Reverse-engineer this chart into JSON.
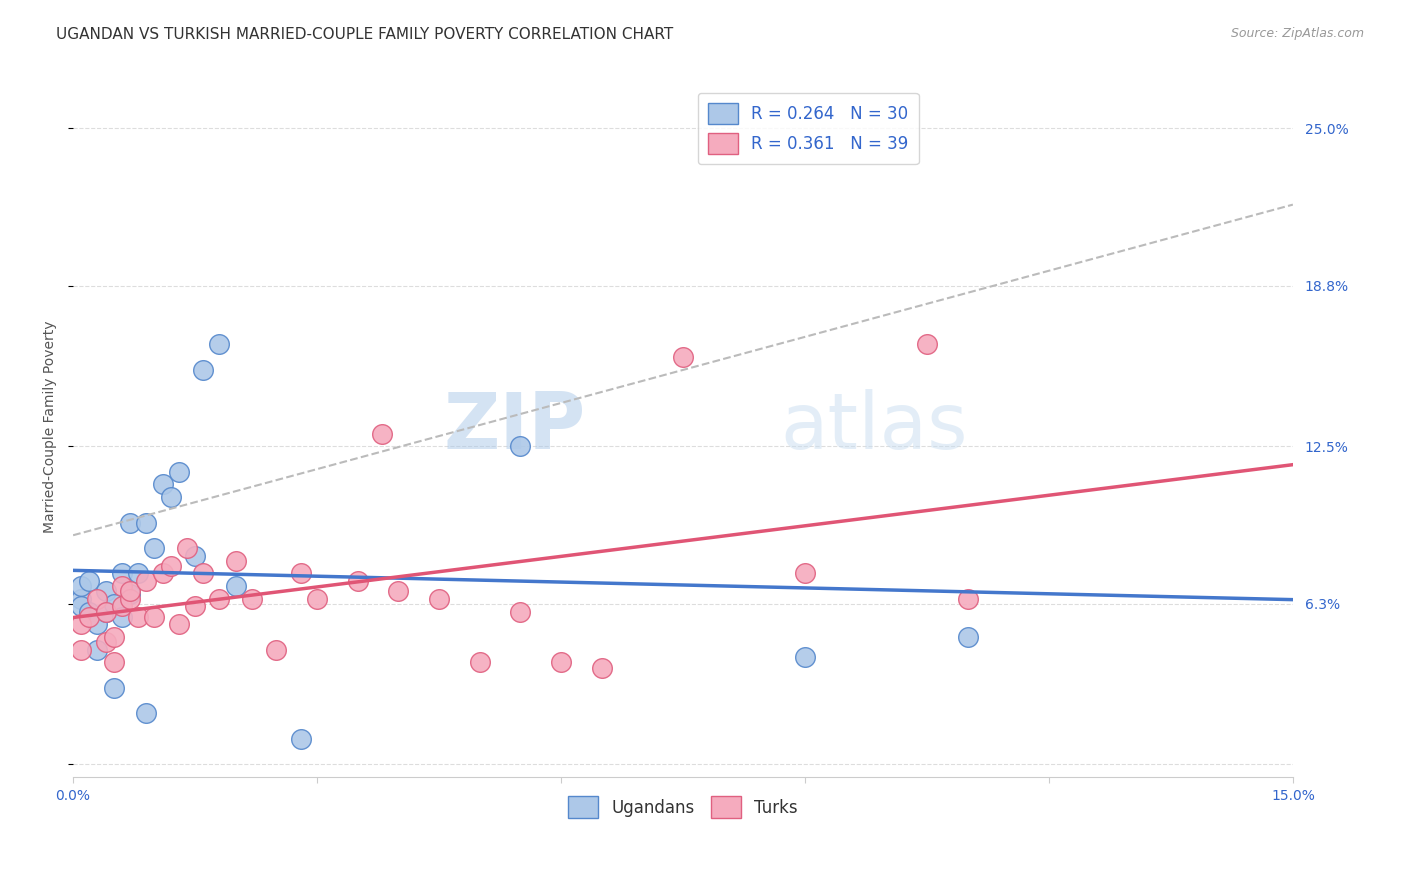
{
  "title": "UGANDAN VS TURKISH MARRIED-COUPLE FAMILY POVERTY CORRELATION CHART",
  "source": "Source: ZipAtlas.com",
  "ylabel": "Married-Couple Family Poverty",
  "watermark_part1": "ZIP",
  "watermark_part2": "atlas",
  "xlim": [
    0.0,
    0.15
  ],
  "ylim": [
    -0.005,
    0.27
  ],
  "xticks": [
    0.0,
    0.03,
    0.06,
    0.09,
    0.12,
    0.15
  ],
  "xticklabels": [
    "0.0%",
    "",
    "",
    "",
    "",
    "15.0%"
  ],
  "ytick_positions": [
    0.0,
    0.063,
    0.125,
    0.188,
    0.25
  ],
  "ytick_labels": [
    "",
    "6.3%",
    "12.5%",
    "18.8%",
    "25.0%"
  ],
  "ugandan_color": "#adc8e8",
  "turkish_color": "#f5abbe",
  "ugandan_edge": "#5588cc",
  "turkish_edge": "#e06080",
  "ugandan_line_color": "#4477cc",
  "turkish_line_color": "#e05575",
  "conf_line_color": "#bbbbbb",
  "legend_r_ugandan": "R = 0.264",
  "legend_n_ugandan": "N = 30",
  "legend_r_turkish": "R = 0.361",
  "legend_n_turkish": "N = 39",
  "ugandan_x": [
    0.001,
    0.001,
    0.001,
    0.002,
    0.002,
    0.003,
    0.003,
    0.004,
    0.004,
    0.005,
    0.005,
    0.006,
    0.006,
    0.007,
    0.007,
    0.008,
    0.009,
    0.009,
    0.01,
    0.011,
    0.012,
    0.013,
    0.015,
    0.016,
    0.018,
    0.02,
    0.028,
    0.055,
    0.09,
    0.11
  ],
  "ugandan_y": [
    0.065,
    0.07,
    0.062,
    0.06,
    0.072,
    0.055,
    0.045,
    0.06,
    0.068,
    0.063,
    0.03,
    0.058,
    0.075,
    0.067,
    0.095,
    0.075,
    0.095,
    0.02,
    0.085,
    0.11,
    0.105,
    0.115,
    0.082,
    0.155,
    0.165,
    0.07,
    0.01,
    0.125,
    0.042,
    0.05
  ],
  "turkish_x": [
    0.001,
    0.001,
    0.002,
    0.003,
    0.004,
    0.004,
    0.005,
    0.005,
    0.006,
    0.006,
    0.007,
    0.007,
    0.008,
    0.009,
    0.01,
    0.011,
    0.012,
    0.013,
    0.014,
    0.015,
    0.016,
    0.018,
    0.02,
    0.022,
    0.025,
    0.028,
    0.03,
    0.035,
    0.038,
    0.04,
    0.045,
    0.05,
    0.055,
    0.06,
    0.065,
    0.075,
    0.09,
    0.105,
    0.11
  ],
  "turkish_y": [
    0.055,
    0.045,
    0.058,
    0.065,
    0.048,
    0.06,
    0.05,
    0.04,
    0.062,
    0.07,
    0.065,
    0.068,
    0.058,
    0.072,
    0.058,
    0.075,
    0.078,
    0.055,
    0.085,
    0.062,
    0.075,
    0.065,
    0.08,
    0.065,
    0.045,
    0.075,
    0.065,
    0.072,
    0.13,
    0.068,
    0.065,
    0.04,
    0.06,
    0.04,
    0.038,
    0.16,
    0.075,
    0.165,
    0.065
  ],
  "background_color": "#ffffff",
  "grid_color": "#dddddd",
  "title_fontsize": 11,
  "axis_label_fontsize": 10,
  "tick_fontsize": 10,
  "legend_fontsize": 12
}
